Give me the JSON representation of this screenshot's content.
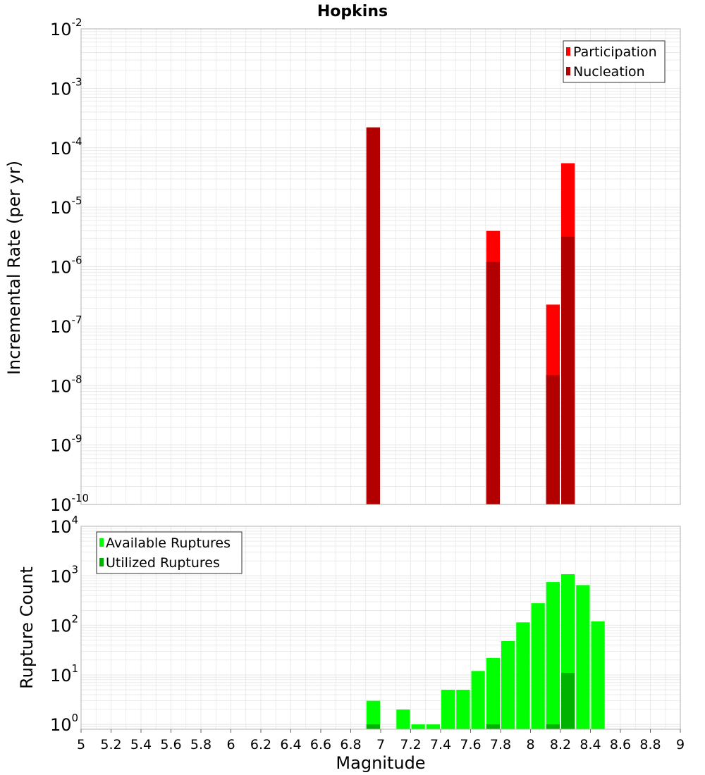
{
  "title": "Hopkins",
  "colors": {
    "participation": "#ff0000",
    "nucleation": "#b20000",
    "available": "#00ff00",
    "utilized": "#00b200",
    "grid": "#e6e6e6",
    "axis": "#b0b0b0"
  },
  "chart_data": [
    {
      "type": "bar",
      "ylabel": "Incremental Rate (per yr)",
      "yscale": "log",
      "ylim": [
        1e-10,
        0.01
      ],
      "xlim": [
        5,
        9
      ],
      "ytick_exponents": [
        -10,
        -9,
        -8,
        -7,
        -6,
        -5,
        -4,
        -3,
        -2
      ],
      "legend": {
        "placement": "top-right",
        "entries": [
          "Participation",
          "Nucleation"
        ]
      },
      "grid": true,
      "series": [
        {
          "name": "Participation",
          "color": "#ff0000",
          "x": [
            6.95,
            7.75,
            8.15,
            8.25
          ],
          "values": [
            0.00022,
            4e-06,
            2.3e-07,
            5.5e-05
          ]
        },
        {
          "name": "Nucleation",
          "color": "#b20000",
          "x": [
            6.95,
            7.75,
            8.15,
            8.25
          ],
          "values": [
            0.00022,
            1.2e-06,
            1.5e-08,
            3.2e-06
          ]
        }
      ]
    },
    {
      "type": "bar",
      "ylabel": "Rupture Count",
      "xlabel": "Magnitude",
      "yscale": "log",
      "ylim": [
        0.8,
        10000
      ],
      "xlim": [
        5,
        9
      ],
      "ytick_exponents": [
        0,
        1,
        2,
        3,
        4
      ],
      "xticks": [
        "5",
        "5.2",
        "5.4",
        "5.6",
        "5.8",
        "6",
        "6.2",
        "6.4",
        "6.6",
        "6.8",
        "7",
        "7.2",
        "7.4",
        "7.6",
        "7.8",
        "8",
        "8.2",
        "8.4",
        "8.6",
        "8.8",
        "9"
      ],
      "legend": {
        "placement": "top-left",
        "entries": [
          "Available Ruptures",
          "Utilized Ruptures"
        ]
      },
      "grid": true,
      "series": [
        {
          "name": "Available Ruptures",
          "color": "#00ff00",
          "x": [
            6.95,
            7.15,
            7.25,
            7.35,
            7.45,
            7.55,
            7.65,
            7.75,
            7.85,
            7.95,
            8.05,
            8.15,
            8.25,
            8.35,
            8.45
          ],
          "values": [
            3,
            2,
            1,
            1,
            5,
            5,
            12,
            22,
            48,
            115,
            280,
            750,
            1080,
            650,
            120
          ]
        },
        {
          "name": "Utilized Ruptures",
          "color": "#00b200",
          "x": [
            6.95,
            7.75,
            8.15,
            8.25
          ],
          "values": [
            1,
            1,
            1,
            11
          ]
        }
      ]
    }
  ]
}
